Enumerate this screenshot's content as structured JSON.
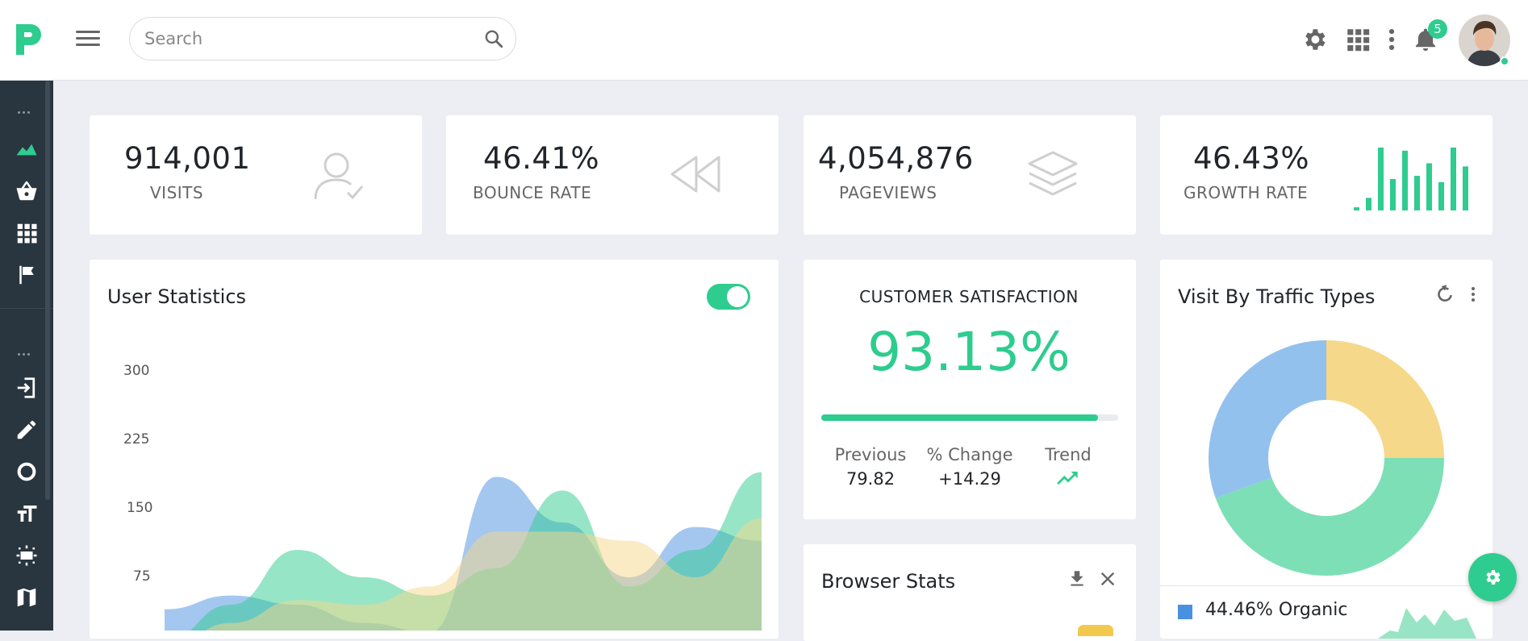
{
  "header": {
    "search_placeholder": "Search",
    "notification_count": "5",
    "icons": [
      "app-logo",
      "menu-icon",
      "search-icon",
      "gear-icon",
      "apps-grid-icon",
      "more-vert-icon",
      "bell-icon",
      "avatar"
    ]
  },
  "sidebar": {
    "icons": [
      "more-dots-icon",
      "chart-area-icon",
      "basket-icon",
      "grid-icon",
      "flag-icon",
      "more-dots-icon",
      "login-icon",
      "pencil-icon",
      "donut-icon",
      "text-format-icon",
      "settings-panel-icon",
      "map-icon"
    ]
  },
  "stats": [
    {
      "value": "914,001",
      "label": "VISITS",
      "icon": "user-check-icon"
    },
    {
      "value": "46.41%",
      "label": "BOUNCE RATE",
      "icon": "rewind-icon"
    },
    {
      "value": "4,054,876",
      "label": "PAGEVIEWS",
      "icon": "layers-icon"
    },
    {
      "value": "46.43%",
      "label": "GROWTH RATE",
      "icon": "bar-sparkline"
    }
  ],
  "user_statistics": {
    "title": "User Statistics",
    "toggle_on": true
  },
  "customer_satisfaction": {
    "title": "CUSTOMER SATISFACTION",
    "value": "93.13%",
    "progress": 0.9313,
    "previous_label": "Previous",
    "previous_value": "79.82",
    "change_label": "% Change",
    "change_value": "+14.29",
    "trend_label": "Trend",
    "trend_icon": "trending-up-icon"
  },
  "browser_stats": {
    "title": "Browser Stats"
  },
  "traffic": {
    "title": "Visit By Traffic Types",
    "legend_text": "44.46% Organic"
  },
  "colors": {
    "accent": "#2ecc8f",
    "blue": "#4a90e2",
    "yellow": "#f5d889",
    "sidebar": "#293640"
  },
  "chart_data": [
    {
      "type": "area",
      "x": [
        1,
        2,
        3,
        4,
        5,
        6,
        7,
        8,
        9,
        10
      ],
      "ylim": [
        0,
        300
      ],
      "yticks": [
        75,
        150,
        225,
        300
      ],
      "series": [
        {
          "values": [
            55,
            70,
            60,
            40,
            30,
            200,
            150,
            90,
            145,
            130
          ]
        },
        {
          "values": [
            20,
            60,
            120,
            90,
            70,
            100,
            185,
            80,
            120,
            205
          ]
        },
        {
          "values": [
            10,
            40,
            65,
            60,
            80,
            140,
            140,
            130,
            90,
            155
          ]
        }
      ]
    },
    {
      "type": "pie",
      "slices": [
        {
          "value": 25
        },
        {
          "value": 44.46
        },
        {
          "value": 30.54
        }
      ]
    },
    {
      "type": "bar",
      "values": [
        0.05,
        0.2,
        1.0,
        0.5,
        0.95,
        0.55,
        0.75,
        0.45,
        1.0,
        0.7
      ]
    }
  ]
}
